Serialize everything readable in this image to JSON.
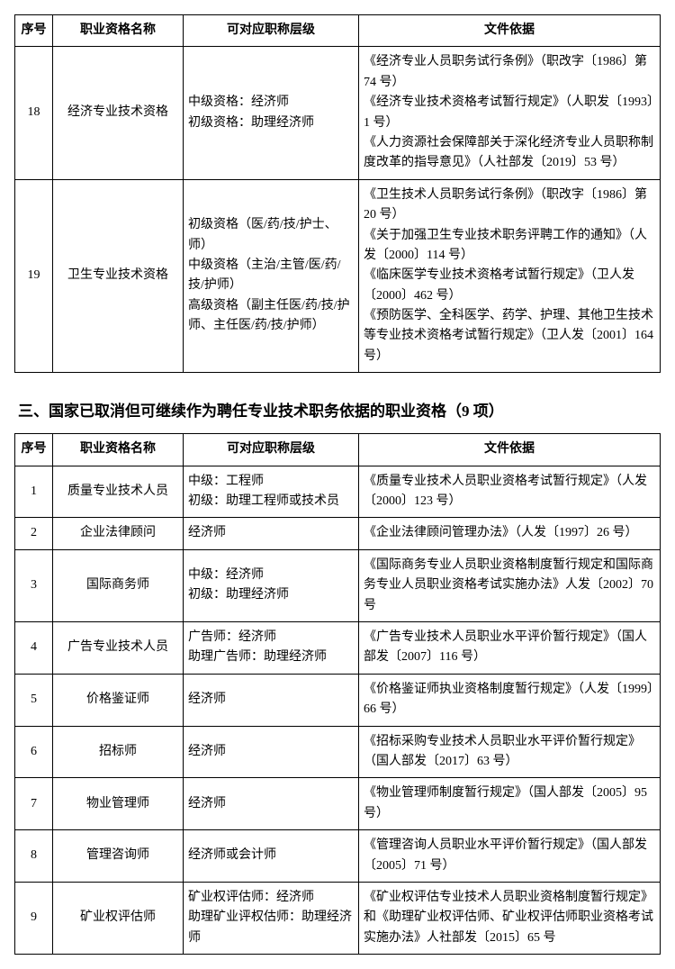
{
  "table1": {
    "headers": {
      "seq": "序号",
      "name": "职业资格名称",
      "level": "可对应职称层级",
      "basis": "文件依据"
    },
    "rows": [
      {
        "seq": "18",
        "name": "经济专业技术资格",
        "level": "中级资格：经济师\n初级资格：助理经济师",
        "basis": "《经济专业人员职务试行条例》（职改字〔1986〕第 74 号）\n《经济专业技术资格考试暂行规定》（人职发〔1993〕1 号）\n《人力资源社会保障部关于深化经济专业人员职称制度改革的指导意见》（人社部发〔2019〕53 号）"
      },
      {
        "seq": "19",
        "name": "卫生专业技术资格",
        "level": "初级资格（医/药/技/护士、师）\n中级资格（主治/主管/医/药/技/护师）\n高级资格（副主任医/药/技/护师、主任医/药/技/护师）",
        "basis": "《卫生技术人员职务试行条例》（职改字〔1986〕第 20 号）\n《关于加强卫生专业技术职务评聘工作的通知》（人发〔2000〕114 号）\n《临床医学专业技术资格考试暂行规定》（卫人发〔2000〕462 号）\n《预防医学、全科医学、药学、护理、其他卫生技术等专业技术资格考试暂行规定》（卫人发〔2001〕164 号）"
      }
    ]
  },
  "section_title": "三、国家已取消但可继续作为聘任专业技术职务依据的职业资格（9 项）",
  "table2": {
    "headers": {
      "seq": "序号",
      "name": "职业资格名称",
      "level": "可对应职称层级",
      "basis": "文件依据"
    },
    "rows": [
      {
        "seq": "1",
        "name": "质量专业技术人员",
        "level": "中级：工程师\n初级：助理工程师或技术员",
        "basis": "《质量专业技术人员职业资格考试暂行规定》（人发〔2000〕123 号）"
      },
      {
        "seq": "2",
        "name": "企业法律顾问",
        "level": "经济师",
        "basis": "《企业法律顾问管理办法》（人发〔1997〕26 号）"
      },
      {
        "seq": "3",
        "name": "国际商务师",
        "level": "中级：经济师\n初级：助理经济师",
        "basis": "《国际商务专业人员职业资格制度暂行规定和国际商务专业人员职业资格考试实施办法》人发〔2002〕70 号"
      },
      {
        "seq": "4",
        "name": "广告专业技术人员",
        "level": "广告师：经济师\n助理广告师：助理经济师",
        "basis": "《广告专业技术人员职业水平评价暂行规定》（国人部发〔2007〕116 号）"
      },
      {
        "seq": "5",
        "name": "价格鉴证师",
        "level": "经济师",
        "basis": "《价格鉴证师执业资格制度暂行规定》（人发〔1999〕66 号）"
      },
      {
        "seq": "6",
        "name": "招标师",
        "level": "经济师",
        "basis": "《招标采购专业技术人员职业水平评价暂行规定》（国人部发〔2017〕63 号）"
      },
      {
        "seq": "7",
        "name": "物业管理师",
        "level": "经济师",
        "basis": "《物业管理师制度暂行规定》（国人部发〔2005〕95 号）"
      },
      {
        "seq": "8",
        "name": "管理咨询师",
        "level": "经济师或会计师",
        "basis": "《管理咨询人员职业水平评价暂行规定》（国人部发〔2005〕71 号）"
      },
      {
        "seq": "9",
        "name": "矿业权评估师",
        "level": "矿业权评估师：经济师\n助理矿业评权估师：助理经济师",
        "basis": "《矿业权评估专业技术人员职业资格制度暂行规定》和《助理矿业权评估师、矿业权评估师职业资格考试实施办法》人社部发〔2015〕65 号"
      }
    ]
  }
}
